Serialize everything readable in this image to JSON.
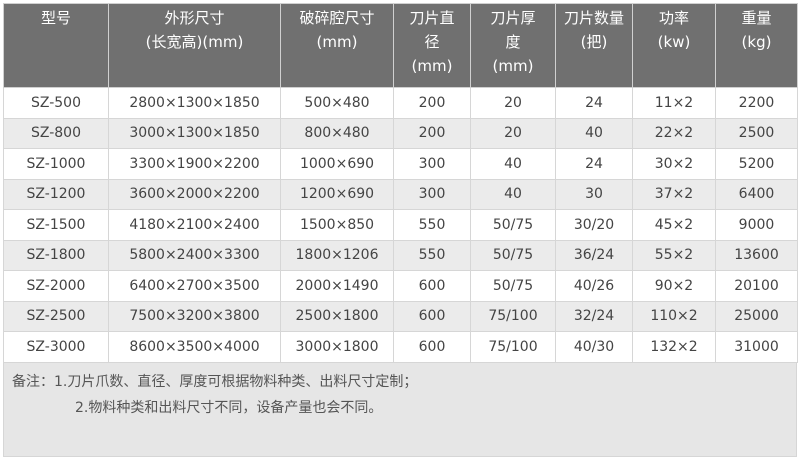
{
  "table": {
    "headers": [
      [
        "型号"
      ],
      [
        "外形尺寸",
        "(长宽高)(mm)"
      ],
      [
        "破碎腔尺寸",
        "(mm)"
      ],
      [
        "刀片直",
        "径",
        "(mm)"
      ],
      [
        "刀片厚",
        "度",
        "(mm)"
      ],
      [
        "刀片数量",
        "(把)"
      ],
      [
        "功率",
        "(kw)"
      ],
      [
        "重量",
        "(kg)"
      ]
    ],
    "rows": [
      [
        "SZ-500",
        "2800×1300×1850",
        "500×480",
        "200",
        "20",
        "24",
        "11×2",
        "2200"
      ],
      [
        "SZ-800",
        "3000×1300×1850",
        "800×480",
        "200",
        "20",
        "40",
        "22×2",
        "2500"
      ],
      [
        "SZ-1000",
        "3300×1900×2200",
        "1000×690",
        "300",
        "40",
        "24",
        "30×2",
        "5200"
      ],
      [
        "SZ-1200",
        "3600×2000×2200",
        "1200×690",
        "300",
        "40",
        "30",
        "37×2",
        "6400"
      ],
      [
        "SZ-1500",
        "4180×2100×2400",
        "1500×850",
        "550",
        "50/75",
        "30/20",
        "45×2",
        "9000"
      ],
      [
        "SZ-1800",
        "5800×2400×3300",
        "1800×1206",
        "550",
        "50/75",
        "36/24",
        "55×2",
        "13600"
      ],
      [
        "SZ-2000",
        "6400×2700×3500",
        "2000×1490",
        "600",
        "50/75",
        "40/26",
        "90×2",
        "20100"
      ],
      [
        "SZ-2500",
        "7500×3200×3800",
        "2500×1800",
        "600",
        "75/100",
        "32/24",
        "110×2",
        "25000"
      ],
      [
        "SZ-3000",
        "8600×3500×4000",
        "3000×1800",
        "600",
        "75/100",
        "40/30",
        "132×2",
        "31000"
      ]
    ]
  },
  "note": {
    "line1": "备注：1.刀片爪数、直径、厚度可根据物料种类、出料尺寸定制；",
    "line2": "2.物料种类和出料尺寸不同，设备产量也会不同。"
  },
  "colors": {
    "header_bg": "#707070",
    "row_alt_bg": "#ebebeb",
    "note_bg": "#e6e6e6"
  }
}
